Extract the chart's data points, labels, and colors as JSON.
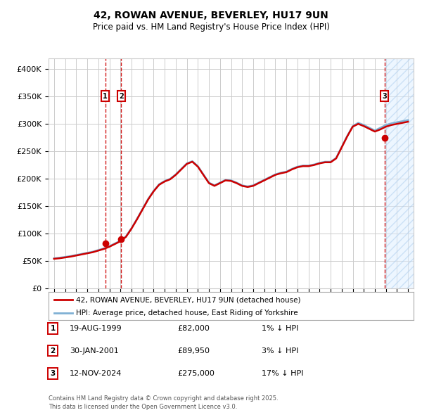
{
  "title": "42, ROWAN AVENUE, BEVERLEY, HU17 9UN",
  "subtitle": "Price paid vs. HM Land Registry's House Price Index (HPI)",
  "legend_line1": "42, ROWAN AVENUE, BEVERLEY, HU17 9UN (detached house)",
  "legend_line2": "HPI: Average price, detached house, East Riding of Yorkshire",
  "footer": "Contains HM Land Registry data © Crown copyright and database right 2025.\nThis data is licensed under the Open Government Licence v3.0.",
  "table_entries": [
    {
      "num": "1",
      "date": "19-AUG-1999",
      "price": "£82,000",
      "hpi": "1% ↓ HPI"
    },
    {
      "num": "2",
      "date": "30-JAN-2001",
      "price": "£89,950",
      "hpi": "3% ↓ HPI"
    },
    {
      "num": "3",
      "date": "12-NOV-2024",
      "price": "£275,000",
      "hpi": "17% ↓ HPI"
    }
  ],
  "sale_points": [
    {
      "year": 1999.63,
      "price": 82000,
      "label": "1"
    },
    {
      "year": 2001.08,
      "price": 89950,
      "label": "2"
    },
    {
      "year": 2024.87,
      "price": 275000,
      "label": "3"
    }
  ],
  "hatch_start": 2024.87,
  "ylim": [
    0,
    420000
  ],
  "xlim_start": 1994.5,
  "xlim_end": 2027.5,
  "red_color": "#cc0000",
  "blue_color": "#7fb0d4",
  "background_color": "#ffffff",
  "grid_color": "#cccccc",
  "hpi_years": [
    1995,
    1995.5,
    1996,
    1996.5,
    1997,
    1997.5,
    1998,
    1998.5,
    1999,
    1999.5,
    2000,
    2000.5,
    2001,
    2001.5,
    2002,
    2002.5,
    2003,
    2003.5,
    2004,
    2004.5,
    2005,
    2005.5,
    2006,
    2006.5,
    2007,
    2007.5,
    2008,
    2008.5,
    2009,
    2009.5,
    2010,
    2010.5,
    2011,
    2011.5,
    2012,
    2012.5,
    2013,
    2013.5,
    2014,
    2014.5,
    2015,
    2015.5,
    2016,
    2016.5,
    2017,
    2017.5,
    2018,
    2018.5,
    2019,
    2019.5,
    2020,
    2020.5,
    2021,
    2021.5,
    2022,
    2022.5,
    2023,
    2023.5,
    2024,
    2024.5,
    2025,
    2025.5,
    2026,
    2026.5,
    2027
  ],
  "hpi_values": [
    55000,
    56000,
    57500,
    59000,
    61000,
    63000,
    65000,
    67000,
    70000,
    73000,
    77000,
    82000,
    87000,
    95000,
    110000,
    127000,
    145000,
    163000,
    178000,
    190000,
    196000,
    200000,
    208000,
    218000,
    228000,
    232000,
    223000,
    208000,
    193000,
    188000,
    193000,
    198000,
    197000,
    193000,
    188000,
    186000,
    188000,
    193000,
    198000,
    203000,
    208000,
    211000,
    213000,
    218000,
    222000,
    224000,
    224000,
    226000,
    229000,
    231000,
    231000,
    238000,
    258000,
    278000,
    296000,
    302000,
    298000,
    293000,
    288000,
    293000,
    298000,
    301000,
    303000,
    305000,
    307000
  ],
  "red_values": [
    54000,
    55000,
    56500,
    58000,
    60000,
    62000,
    64000,
    66000,
    69000,
    72000,
    76000,
    81000,
    86000,
    94000,
    109000,
    126000,
    144000,
    162000,
    177000,
    189000,
    195000,
    199000,
    207000,
    217000,
    227000,
    231000,
    222000,
    207000,
    192000,
    187000,
    192000,
    197000,
    196000,
    192000,
    187000,
    185000,
    187000,
    192000,
    197000,
    202000,
    207000,
    210000,
    212000,
    217000,
    221000,
    223000,
    223000,
    225000,
    228000,
    230000,
    230000,
    237000,
    257000,
    277000,
    295000,
    300000,
    296000,
    291000,
    286000,
    290000,
    295000,
    298000,
    300000,
    302000,
    304000
  ]
}
